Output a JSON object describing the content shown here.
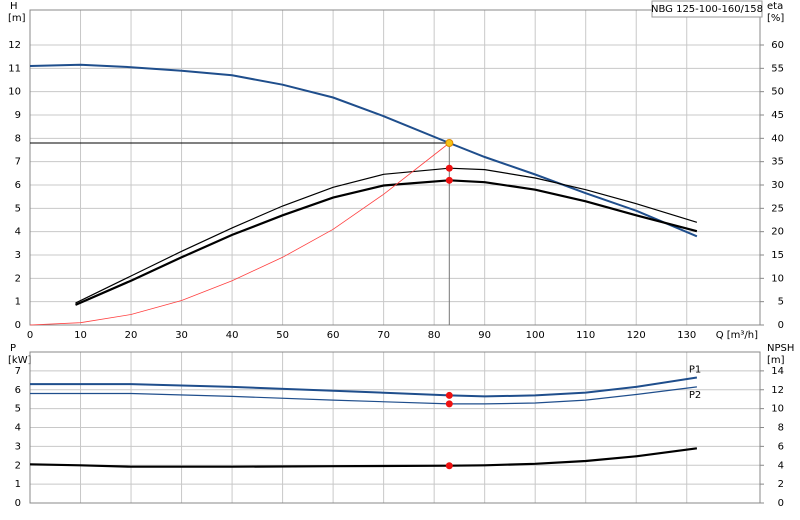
{
  "title": "NBG 125-100-160/158",
  "chart_data": [
    {
      "type": "line",
      "ylabel": "H",
      "yunit": "[m]",
      "y2label": "eta",
      "y2unit": "[%]",
      "xlabel": "Q [m³/h]",
      "xlim": [
        0,
        144.5
      ],
      "xticks": [
        0,
        10,
        20,
        30,
        40,
        50,
        60,
        70,
        80,
        90,
        100,
        110,
        120,
        130
      ],
      "xtick_labels": true,
      "ylim": [
        0,
        13.5
      ],
      "yticks": [
        0,
        1,
        2,
        3,
        4,
        5,
        6,
        7,
        8,
        9,
        10,
        11,
        12
      ],
      "y2lim": [
        0,
        67.5
      ],
      "y2ticks": [
        0,
        5,
        10,
        15,
        20,
        25,
        30,
        35,
        40,
        45,
        50,
        55,
        60
      ],
      "grid": true,
      "series": [
        {
          "color": "#1f4e8c",
          "width": 2,
          "x": [
            0,
            10,
            20,
            30,
            40,
            50,
            60,
            70,
            83,
            90,
            100,
            110,
            120,
            132
          ],
          "values": [
            11.1,
            11.15,
            11.05,
            10.9,
            10.7,
            10.3,
            9.75,
            8.95,
            7.8,
            7.2,
            6.45,
            5.65,
            4.9,
            3.8
          ]
        },
        {
          "color": "#000000",
          "width": 1.2,
          "axis": "y2",
          "x": [
            9,
            20,
            30,
            40,
            50,
            60,
            70,
            83,
            90,
            100,
            110,
            120,
            132
          ],
          "values": [
            4.7,
            10.5,
            15.8,
            20.8,
            25.5,
            29.5,
            32.3,
            33.6,
            33.3,
            31.5,
            29,
            26,
            22
          ]
        },
        {
          "color": "#000000",
          "width": 2.2,
          "axis": "y2",
          "x": [
            9,
            20,
            30,
            40,
            50,
            60,
            70,
            83,
            90,
            100,
            110,
            120,
            132
          ],
          "values": [
            4.3,
            9.5,
            14.5,
            19.3,
            23.5,
            27.3,
            29.9,
            31,
            30.6,
            29,
            26.5,
            23.5,
            20.1
          ]
        },
        {
          "color": "#ff4040",
          "width": 0.8,
          "x": [
            0,
            10,
            20,
            30,
            40,
            50,
            60,
            70,
            83
          ],
          "values": [
            0,
            0.1,
            0.45,
            1.05,
            1.9,
            2.9,
            4.1,
            5.6,
            7.8
          ]
        }
      ],
      "guides": true,
      "markers": [
        {
          "x": 83,
          "y": 7.8,
          "color": "#f5c518"
        },
        {
          "x": 83,
          "y": 33.6,
          "axis": "y2",
          "color": "#ee1111"
        },
        {
          "x": 83,
          "y": 31,
          "axis": "y2",
          "color": "#ee1111"
        }
      ]
    },
    {
      "type": "line",
      "ylabel": "P",
      "yunit": "[kW]",
      "y2label": "NPSH",
      "y2unit": "[m]",
      "xlim": [
        0,
        144.5
      ],
      "xticks": [
        0,
        10,
        20,
        30,
        40,
        50,
        60,
        70,
        80,
        90,
        100,
        110,
        120,
        130
      ],
      "xtick_labels": false,
      "ylim": [
        0,
        8
      ],
      "yticks": [
        0,
        1,
        2,
        3,
        4,
        5,
        6,
        7
      ],
      "y2lim": [
        0,
        16
      ],
      "y2ticks": [
        0,
        2,
        4,
        6,
        8,
        10,
        12,
        14
      ],
      "grid": true,
      "series": [
        {
          "name": "P1",
          "color": "#1f4e8c",
          "width": 2,
          "x": [
            0,
            20,
            40,
            60,
            83,
            90,
            100,
            110,
            120,
            132
          ],
          "values": [
            6.3,
            6.3,
            6.15,
            5.95,
            5.7,
            5.65,
            5.7,
            5.85,
            6.15,
            6.65
          ]
        },
        {
          "name": "P2",
          "color": "#1f4e8c",
          "width": 1.2,
          "x": [
            0,
            20,
            40,
            60,
            83,
            90,
            100,
            110,
            120,
            132
          ],
          "values": [
            5.8,
            5.8,
            5.65,
            5.45,
            5.25,
            5.25,
            5.3,
            5.45,
            5.75,
            6.15
          ]
        },
        {
          "color": "#000000",
          "width": 2.2,
          "axis": "y2",
          "x": [
            0,
            10,
            20,
            40,
            60,
            83,
            90,
            100,
            110,
            120,
            132
          ],
          "values": [
            4.1,
            4.0,
            3.85,
            3.85,
            3.9,
            3.95,
            4.0,
            4.15,
            4.45,
            4.95,
            5.8
          ]
        }
      ],
      "guides": false,
      "markers": [
        {
          "x": 83,
          "y": 5.7,
          "color": "#ee1111"
        },
        {
          "x": 83,
          "y": 5.25,
          "color": "#ee1111"
        },
        {
          "x": 83,
          "y": 3.95,
          "axis": "y2",
          "color": "#ee1111"
        }
      ]
    }
  ]
}
